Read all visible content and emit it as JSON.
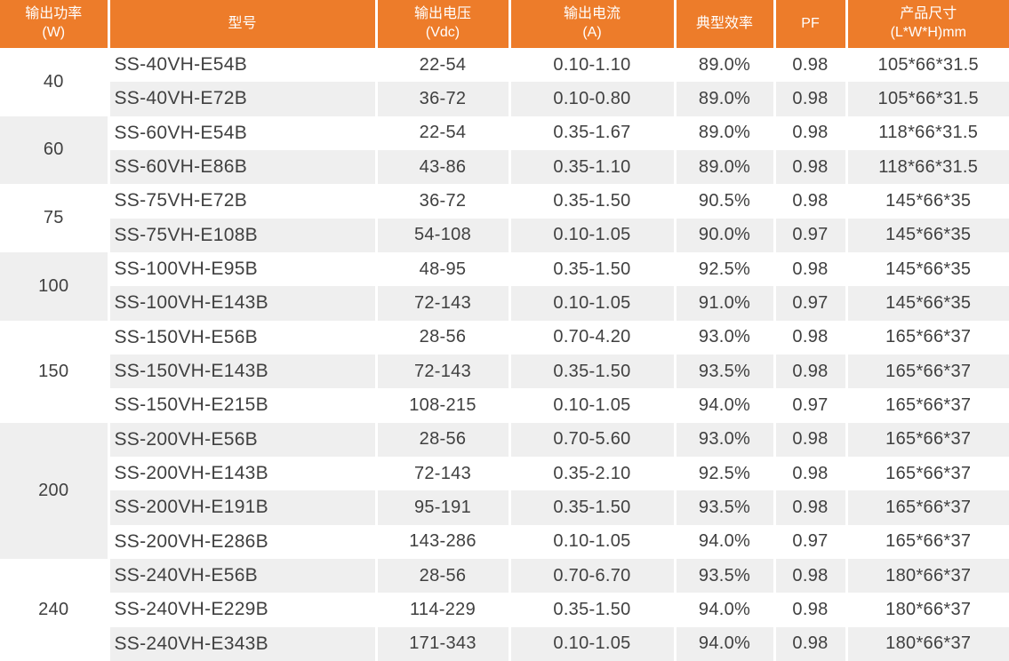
{
  "colors": {
    "header_bg": "#ED7C2A",
    "header_text": "#FFFFFF",
    "stripe_gray": "#EFEFEF",
    "row_white": "#FFFFFF",
    "text": "#404040",
    "separator": "#FFFFFF"
  },
  "table": {
    "headers": [
      {
        "lines": [
          "输出功率",
          "(W)"
        ]
      },
      {
        "lines": [
          "型号"
        ]
      },
      {
        "lines": [
          "输出电压",
          "(Vdc)"
        ]
      },
      {
        "lines": [
          "输出电流",
          "(A)"
        ]
      },
      {
        "lines": [
          "典型效率"
        ]
      },
      {
        "lines": [
          "PF"
        ]
      },
      {
        "lines": [
          "产品尺寸",
          "(L*W*H)mm"
        ]
      }
    ],
    "groups": [
      {
        "power": "40",
        "rows": [
          {
            "model": "SS-40VH-E54B",
            "voltage": "22-54",
            "current": "0.10-1.10",
            "efficiency": "89.0%",
            "pf": "0.98",
            "size": "105*66*31.5"
          },
          {
            "model": "SS-40VH-E72B",
            "voltage": "36-72",
            "current": "0.10-0.80",
            "efficiency": "89.0%",
            "pf": "0.98",
            "size": "105*66*31.5"
          }
        ]
      },
      {
        "power": "60",
        "rows": [
          {
            "model": "SS-60VH-E54B",
            "voltage": "22-54",
            "current": "0.35-1.67",
            "efficiency": "89.0%",
            "pf": "0.98",
            "size": "118*66*31.5"
          },
          {
            "model": "SS-60VH-E86B",
            "voltage": "43-86",
            "current": "0.35-1.10",
            "efficiency": "89.0%",
            "pf": "0.98",
            "size": "118*66*31.5"
          }
        ]
      },
      {
        "power": "75",
        "rows": [
          {
            "model": "SS-75VH-E72B",
            "voltage": "36-72",
            "current": "0.35-1.50",
            "efficiency": "90.5%",
            "pf": "0.98",
            "size": "145*66*35"
          },
          {
            "model": "SS-75VH-E108B",
            "voltage": "54-108",
            "current": "0.10-1.05",
            "efficiency": "90.0%",
            "pf": "0.97",
            "size": "145*66*35"
          }
        ]
      },
      {
        "power": "100",
        "rows": [
          {
            "model": "SS-100VH-E95B",
            "voltage": "48-95",
            "current": "0.35-1.50",
            "efficiency": "92.5%",
            "pf": "0.98",
            "size": "145*66*35"
          },
          {
            "model": "SS-100VH-E143B",
            "voltage": "72-143",
            "current": "0.10-1.05",
            "efficiency": "91.0%",
            "pf": "0.97",
            "size": "145*66*35"
          }
        ]
      },
      {
        "power": "150",
        "rows": [
          {
            "model": "SS-150VH-E56B",
            "voltage": "28-56",
            "current": "0.70-4.20",
            "efficiency": "93.0%",
            "pf": "0.98",
            "size": "165*66*37"
          },
          {
            "model": "SS-150VH-E143B",
            "voltage": "72-143",
            "current": "0.35-1.50",
            "efficiency": "93.5%",
            "pf": "0.98",
            "size": "165*66*37"
          },
          {
            "model": "SS-150VH-E215B",
            "voltage": "108-215",
            "current": "0.10-1.05",
            "efficiency": "94.0%",
            "pf": "0.97",
            "size": "165*66*37"
          }
        ]
      },
      {
        "power": "200",
        "rows": [
          {
            "model": "SS-200VH-E56B",
            "voltage": "28-56",
            "current": "0.70-5.60",
            "efficiency": "93.0%",
            "pf": "0.98",
            "size": "165*66*37"
          },
          {
            "model": "SS-200VH-E143B",
            "voltage": "72-143",
            "current": "0.35-2.10",
            "efficiency": "92.5%",
            "pf": "0.98",
            "size": "165*66*37"
          },
          {
            "model": "SS-200VH-E191B",
            "voltage": "95-191",
            "current": "0.35-1.50",
            "efficiency": "93.5%",
            "pf": "0.98",
            "size": "165*66*37"
          },
          {
            "model": "SS-200VH-E286B",
            "voltage": "143-286",
            "current": "0.10-1.05",
            "efficiency": "94.0%",
            "pf": "0.97",
            "size": "165*66*37"
          }
        ]
      },
      {
        "power": "240",
        "rows": [
          {
            "model": "SS-240VH-E56B",
            "voltage": "28-56",
            "current": "0.70-6.70",
            "efficiency": "93.5%",
            "pf": "0.98",
            "size": "180*66*37"
          },
          {
            "model": "SS-240VH-E229B",
            "voltage": "114-229",
            "current": "0.35-1.50",
            "efficiency": "94.0%",
            "pf": "0.98",
            "size": "180*66*37"
          },
          {
            "model": "SS-240VH-E343B",
            "voltage": "171-343",
            "current": "0.10-1.05",
            "efficiency": "94.0%",
            "pf": "0.98",
            "size": "180*66*37"
          }
        ]
      }
    ]
  }
}
